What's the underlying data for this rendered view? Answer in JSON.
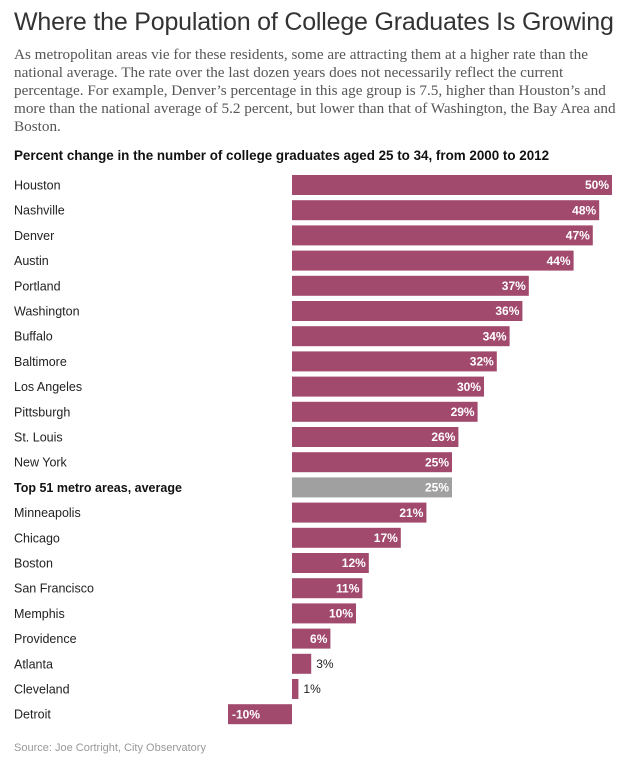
{
  "header": {
    "title": "Where the Population of College Graduates Is Growing",
    "description": "As metropolitan areas vie for these residents, some are attracting them at a higher rate than the national average. The rate over the last dozen years does not necessarily reflect the current percentage. For example, Denver’s percentage in this age group is 7.5, higher than Houston’s and more than the national average of 5.2 percent, but lower than that of Washington, the Bay Area and Boston."
  },
  "footer": {
    "source": "Source: Joe Cortright, City Observatory"
  },
  "colors": {
    "bar": "#a24a6e",
    "average_bar": "#a0a0a0"
  },
  "chart_data": {
    "type": "bar",
    "orientation": "horizontal",
    "title": "Percent change in the number of college graduates aged 25 to 34, from 2000 to 2012",
    "categories": [
      "Houston",
      "Nashville",
      "Denver",
      "Austin",
      "Portland",
      "Washington",
      "Buffalo",
      "Baltimore",
      "Los Angeles",
      "Pittsburgh",
      "St. Louis",
      "New York",
      "Top 51 metro areas, average",
      "Minneapolis",
      "Chicago",
      "Boston",
      "San Francisco",
      "Memphis",
      "Providence",
      "Atlanta",
      "Cleveland",
      "Detroit"
    ],
    "values": [
      50,
      48,
      47,
      44,
      37,
      36,
      34,
      32,
      30,
      29,
      26,
      25,
      25,
      21,
      17,
      12,
      11,
      10,
      6,
      3,
      1,
      -10
    ],
    "value_labels": [
      "50%",
      "48%",
      "47%",
      "44%",
      "37%",
      "36%",
      "34%",
      "32%",
      "30%",
      "29%",
      "26%",
      "25%",
      "25%",
      "21%",
      "17%",
      "12%",
      "11%",
      "10%",
      "6%",
      "3%",
      "1%",
      "-10%"
    ],
    "highlight_category": "Top 51 metro areas, average",
    "xlim": [
      -10,
      50
    ]
  }
}
